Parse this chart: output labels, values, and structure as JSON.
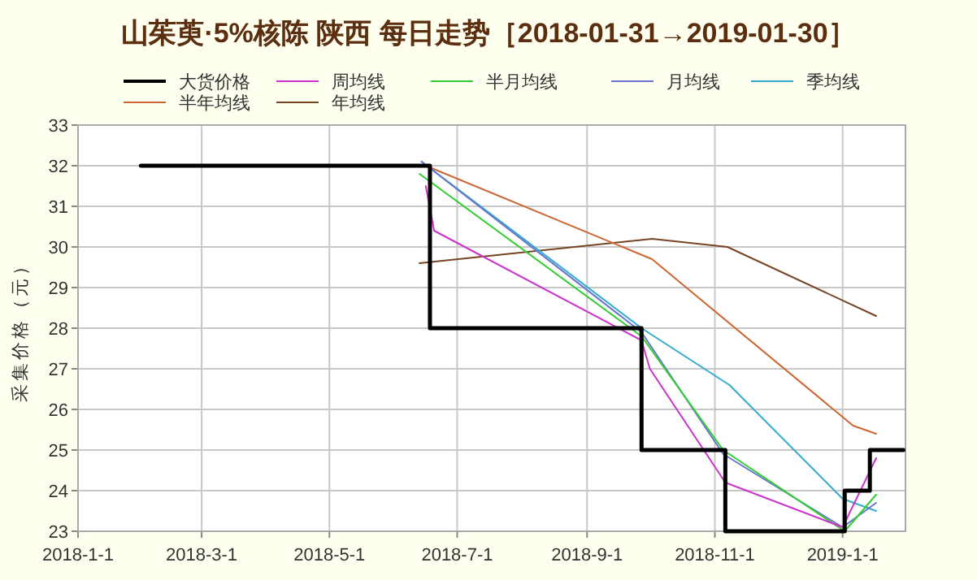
{
  "chart_data": {
    "type": "line",
    "title": "山茱萸·5%核陈 陕西 每日走势［2018-01-31→2019-01-30］",
    "ylabel": "采集价格（元）",
    "xlim": [
      "2018-01-01",
      "2019-01-31"
    ],
    "ylim": [
      23,
      33
    ],
    "xticks": [
      {
        "value": "2018-01-01",
        "label": "2018-1-1"
      },
      {
        "value": "2018-03-01",
        "label": "2018-3-1"
      },
      {
        "value": "2018-05-01",
        "label": "2018-5-1"
      },
      {
        "value": "2018-07-01",
        "label": "2018-7-1"
      },
      {
        "value": "2018-09-01",
        "label": "2018-9-1"
      },
      {
        "value": "2018-11-01",
        "label": "2018-11-1"
      },
      {
        "value": "2019-01-01",
        "label": "2019-1-1"
      }
    ],
    "yticks": [
      23,
      24,
      25,
      26,
      27,
      28,
      29,
      30,
      31,
      32,
      33
    ],
    "grid": true,
    "legend": "top",
    "series": [
      {
        "name": "大货价格",
        "type": "step",
        "color": "#000000",
        "x": [
          "2018-01-31",
          "2018-06-18",
          "2018-09-27",
          "2018-11-06",
          "2019-01-02",
          "2019-01-14",
          "2019-01-30"
        ],
        "values": [
          32,
          28,
          25,
          23,
          24,
          25,
          25
        ]
      },
      {
        "name": "周均线",
        "color": "#cc33cc",
        "x": [
          "2018-06-16",
          "2018-06-20",
          "2018-09-27",
          "2018-10-01",
          "2018-11-06",
          "2019-01-01",
          "2019-01-17"
        ],
        "values": [
          31.5,
          30.4,
          27.7,
          27.0,
          24.2,
          23.1,
          24.8
        ]
      },
      {
        "name": "半月均线",
        "color": "#33cc33",
        "x": [
          "2018-06-13",
          "2018-09-27",
          "2018-11-05",
          "2019-01-02",
          "2019-01-17"
        ],
        "values": [
          31.8,
          27.8,
          25.0,
          23.0,
          23.9
        ]
      },
      {
        "name": "月均线",
        "color": "#6677cc",
        "x": [
          "2018-06-14",
          "2018-09-27",
          "2018-11-05",
          "2019-01-01",
          "2019-01-17"
        ],
        "values": [
          32.1,
          27.9,
          24.9,
          23.1,
          23.7
        ]
      },
      {
        "name": "季均线",
        "color": "#33aacc",
        "x": [
          "2018-06-14",
          "2018-09-27",
          "2018-11-08",
          "2019-01-01",
          "2019-01-17"
        ],
        "values": [
          32.1,
          28.0,
          26.6,
          23.8,
          23.5
        ]
      },
      {
        "name": "半年均线",
        "color": "#cc6633",
        "x": [
          "2018-06-16",
          "2018-10-02",
          "2019-01-06",
          "2019-01-17"
        ],
        "values": [
          32.0,
          29.7,
          25.6,
          25.4
        ]
      },
      {
        "name": "年均线",
        "color": "#774422",
        "x": [
          "2018-06-13",
          "2018-10-02",
          "2018-11-07",
          "2019-01-17"
        ],
        "values": [
          29.6,
          30.2,
          30.0,
          28.3
        ]
      }
    ]
  }
}
